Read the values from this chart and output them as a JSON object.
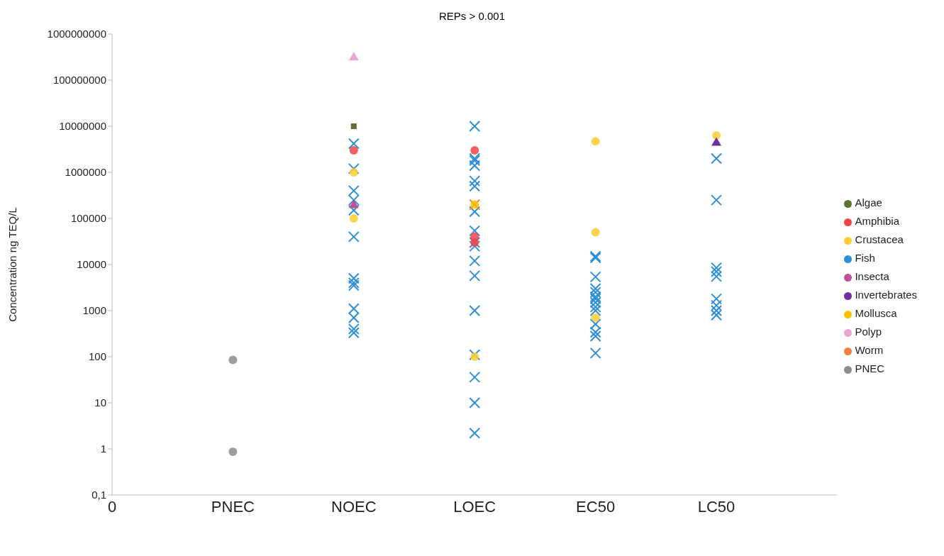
{
  "chart_data": {
    "type": "scatter",
    "title": "REPs > 0.001",
    "ylabel": "Concentration ng TEQ/L",
    "log": "y",
    "ylim": [
      0.1,
      1000000000
    ],
    "yticks": [
      {
        "value": 0.1,
        "label": "0,1"
      },
      1,
      10,
      100,
      1000,
      10000,
      100000,
      1000000,
      10000000,
      100000000,
      1000000000
    ],
    "categories": [
      "0",
      "PNEC",
      "NOEC",
      "LOEC",
      "EC50",
      "LC50",
      null
    ],
    "grid": false,
    "legend": "right",
    "series": [
      {
        "name": "Algae",
        "color": "#5a7233",
        "marker": "square",
        "x": [
          "NOEC"
        ],
        "values": [
          10000000
        ]
      },
      {
        "name": "Amphibia",
        "color": "#ee4444",
        "marker": "circle",
        "x": [
          "NOEC",
          "LOEC",
          "LOEC",
          "LOEC"
        ],
        "values": [
          3000000,
          3000000,
          40000,
          30000
        ]
      },
      {
        "name": "Crustacea",
        "color": "#ffcc33",
        "marker": "circle",
        "x": [
          "NOEC",
          "NOEC",
          "LOEC",
          "EC50",
          "EC50",
          "EC50",
          "LC50"
        ],
        "values": [
          1000000,
          100000,
          100,
          4700000,
          50000,
          700,
          6300000
        ]
      },
      {
        "name": "Fish",
        "color": "#2e8fd6",
        "marker": "cross",
        "x": [
          "NOEC",
          "NOEC",
          "NOEC",
          "NOEC",
          "NOEC",
          "NOEC",
          "NOEC",
          "NOEC",
          "NOEC",
          "NOEC",
          "NOEC",
          "NOEC",
          "NOEC",
          "LOEC",
          "LOEC",
          "LOEC",
          "LOEC",
          "LOEC",
          "LOEC",
          "LOEC",
          "LOEC",
          "LOEC",
          "LOEC",
          "LOEC",
          "LOEC",
          "LOEC",
          "LOEC",
          "LOEC",
          "LOEC",
          "LOEC",
          "EC50",
          "EC50",
          "EC50",
          "EC50",
          "EC50",
          "EC50",
          "EC50",
          "EC50",
          "EC50",
          "EC50",
          "EC50",
          "EC50",
          "EC50",
          "EC50",
          "LC50",
          "LC50",
          "LC50",
          "LC50",
          "LC50",
          "LC50",
          "LC50",
          "LC50",
          "LC50"
        ],
        "values": [
          4200000,
          1200000,
          400000,
          250000,
          150000,
          40000,
          5000,
          4000,
          3500,
          1100,
          700,
          400,
          330,
          10000000,
          2000000,
          1800000,
          1400000,
          650000,
          500000,
          140000,
          54000,
          30000,
          25000,
          12000,
          5700,
          1000,
          110,
          36,
          10,
          2.2,
          14000,
          15000,
          5400,
          3000,
          2500,
          2000,
          1800,
          1500,
          1200,
          510,
          340,
          280,
          120,
          1000,
          2000000,
          250000,
          8500,
          7000,
          5500,
          1800,
          1300,
          1000,
          800
        ]
      },
      {
        "name": "Insecta",
        "color": "#c0509a",
        "marker": "triangle",
        "x": [
          "NOEC"
        ],
        "values": [
          200000
        ]
      },
      {
        "name": "Invertebrates",
        "color": "#7030a0",
        "marker": "triangle",
        "x": [
          "LC50"
        ],
        "values": [
          4500000
        ]
      },
      {
        "name": "Mollusca",
        "color": "#ffc000",
        "marker": "circle",
        "x": [
          "LOEC"
        ],
        "values": [
          200000
        ]
      },
      {
        "name": "Polyp",
        "color": "#e6a8d2",
        "marker": "triangle",
        "x": [
          "NOEC"
        ],
        "values": [
          320000000
        ]
      },
      {
        "name": "Worm",
        "color": "#f08040",
        "marker": "cross",
        "x": [
          "LOEC"
        ],
        "values": [
          200000
        ]
      },
      {
        "name": "PNEC",
        "color": "#8c8c8c",
        "marker": "circle",
        "x": [
          "PNEC",
          "PNEC"
        ],
        "values": [
          85,
          0.87
        ]
      }
    ]
  }
}
